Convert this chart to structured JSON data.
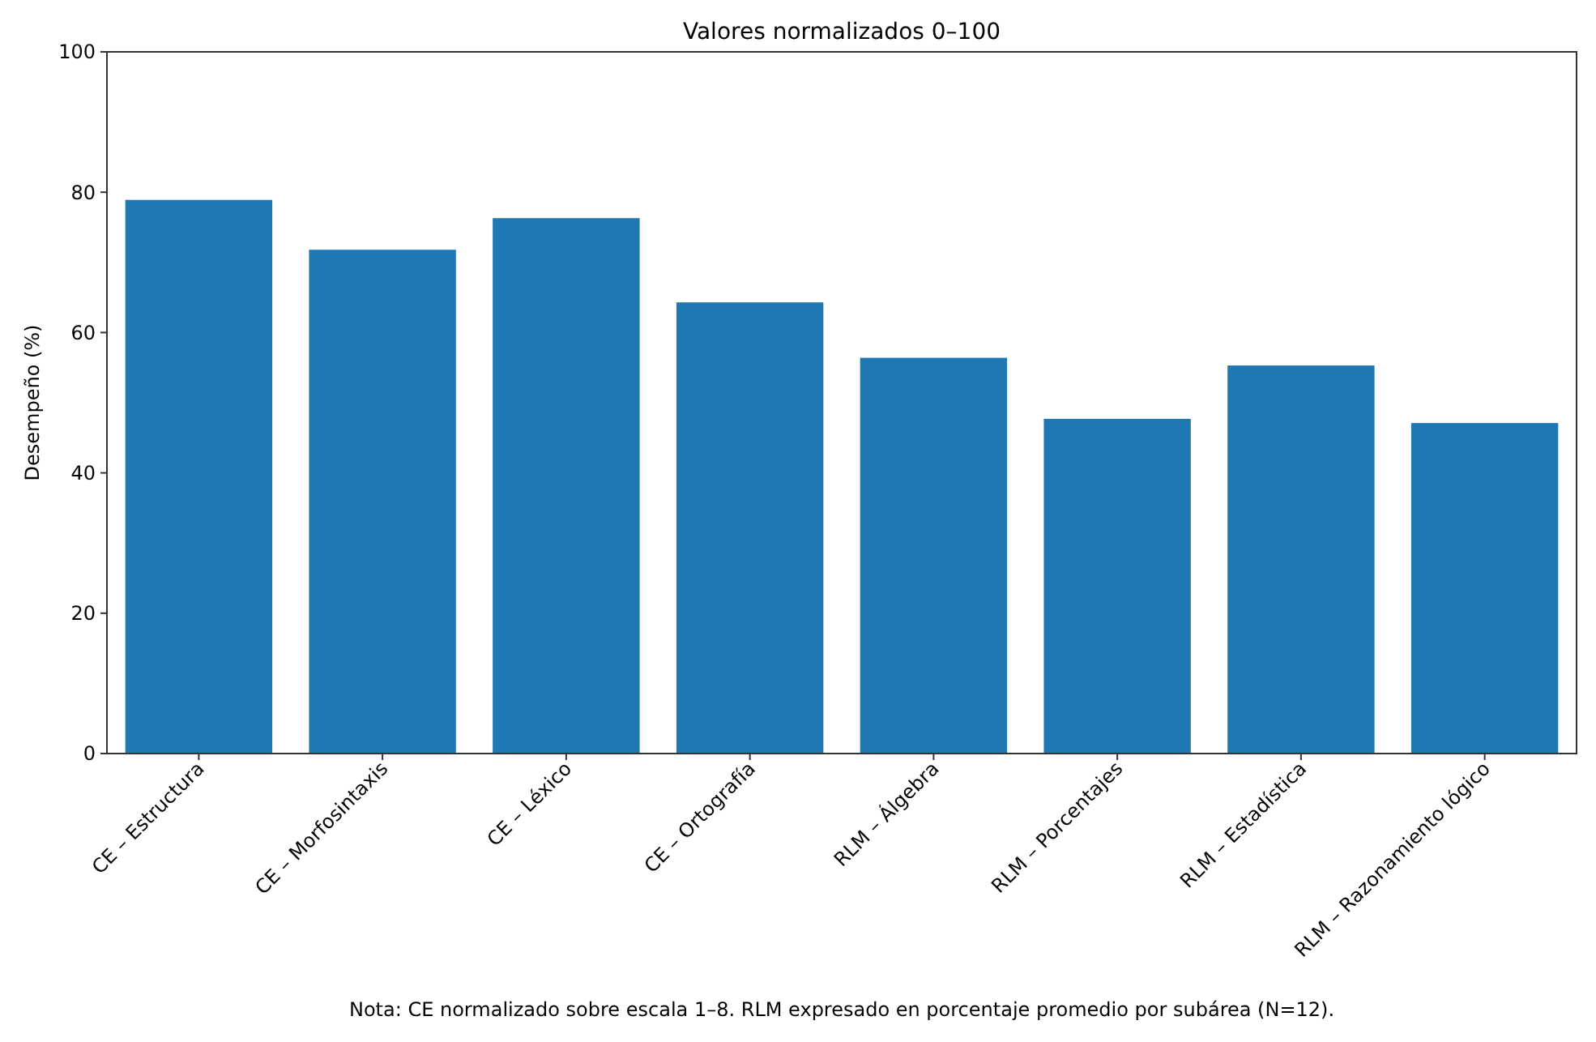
{
  "chart_data": {
    "type": "bar",
    "title": "Valores normalizados 0–100",
    "ylabel": "Desempeño (%)",
    "categories": [
      "CE – Estructura",
      "CE – Morfosintaxis",
      "CE – Léxico",
      "CE – Ortografía",
      "RLM – Álgebra",
      "RLM – Porcentajes",
      "RLM – Estadística",
      "RLM – Razonamiento lógico"
    ],
    "values": [
      78.9,
      71.8,
      76.3,
      64.3,
      56.4,
      47.7,
      55.3,
      47.1
    ],
    "color": "#1f77b4",
    "ylim": [
      0,
      100
    ],
    "yticks": [
      0,
      20,
      40,
      60,
      80,
      100
    ],
    "grid": false,
    "annotations": [
      "Nota: CE normalizado sobre escala 1–8. RLM expresado en porcentaje promedio por subárea (N=12)."
    ]
  }
}
